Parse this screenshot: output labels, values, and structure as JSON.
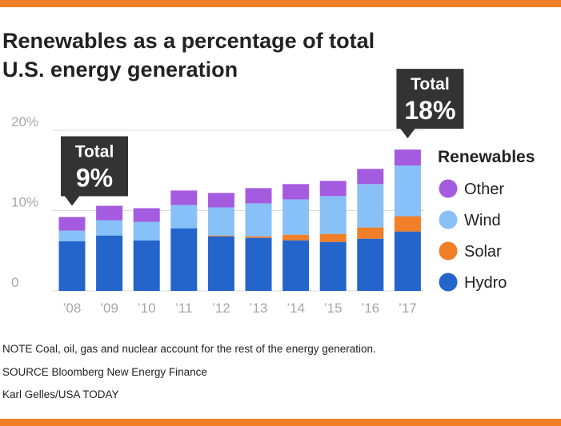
{
  "colors": {
    "accent": "#f07f27",
    "hydro": "#2465cc",
    "solar": "#f07f27",
    "wind": "#87c1f8",
    "other": "#a45be0",
    "gridline": "#dcdcdc",
    "axis_text": "#a6a6a6",
    "callout": "#333333"
  },
  "header": {
    "title_line1": "Renewables as a percentage of total",
    "title_line2": "U.S. energy generation"
  },
  "chart_data": {
    "type": "bar",
    "stacked": true,
    "title": "Renewables as a percentage of total U.S. energy generation",
    "xlabel": "",
    "ylabel": "",
    "ylim": [
      0,
      20
    ],
    "yticks": [
      {
        "value": 0,
        "label": "0"
      },
      {
        "value": 10,
        "label": "10%"
      },
      {
        "value": 20,
        "label": "20%"
      }
    ],
    "categories": [
      "’08",
      "’09",
      "’10",
      "’11",
      "’12",
      "’13",
      "’14",
      "’15",
      "’16",
      "’17"
    ],
    "series": [
      {
        "name": "Hydro",
        "color": "#2465cc",
        "values": [
          6.2,
          6.9,
          6.3,
          7.8,
          6.8,
          6.6,
          6.3,
          6.1,
          6.5,
          7.4
        ]
      },
      {
        "name": "Solar",
        "color": "#f07f27",
        "values": [
          0.0,
          0.0,
          0.0,
          0.0,
          0.1,
          0.2,
          0.7,
          1.0,
          1.4,
          1.9
        ]
      },
      {
        "name": "Wind",
        "color": "#87c1f8",
        "values": [
          1.3,
          1.9,
          2.3,
          2.9,
          3.5,
          4.1,
          4.4,
          4.7,
          5.4,
          6.3
        ]
      },
      {
        "name": "Other",
        "color": "#a45be0",
        "values": [
          1.7,
          1.8,
          1.7,
          1.8,
          1.8,
          1.9,
          1.9,
          1.9,
          1.9,
          2.0
        ]
      }
    ],
    "legend": {
      "title": "Renewables",
      "position": "right",
      "items": [
        "Other",
        "Wind",
        "Solar",
        "Hydro"
      ]
    },
    "annotations": [
      {
        "category": "’08",
        "line1": "Total",
        "line2": "9%"
      },
      {
        "category": "’17",
        "line1": "Total",
        "line2": "18%"
      }
    ]
  },
  "notes": {
    "note": "NOTE Coal, oil, gas and nuclear account for the rest of the energy generation.",
    "source": "SOURCE Bloomberg New Energy Finance",
    "credit": "Karl Gelles/USA TODAY"
  }
}
